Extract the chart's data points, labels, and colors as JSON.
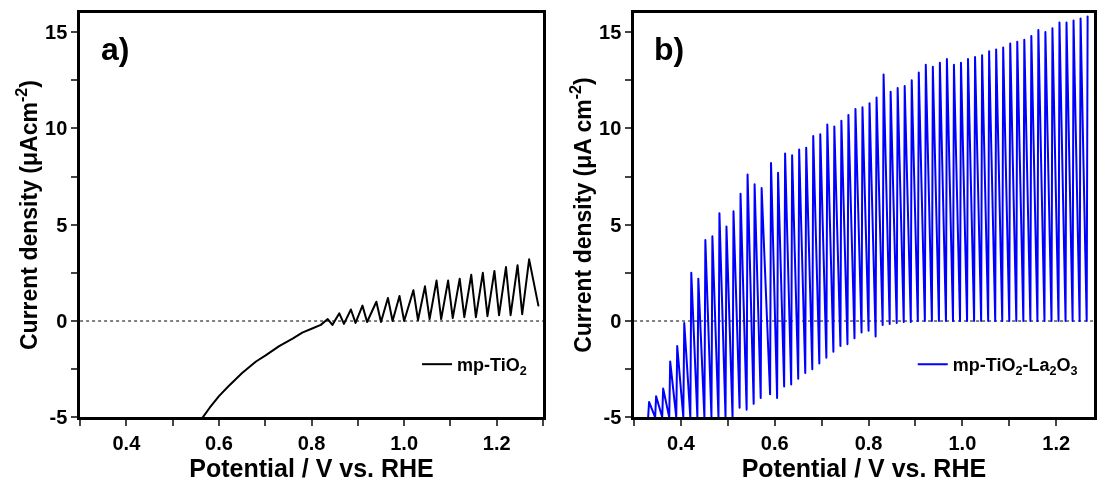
{
  "chart_data": [
    {
      "type": "line",
      "xlabel": "Potential / V vs. RHE",
      "ylabel": "Current density (μAcm$^{-2}$)",
      "xlim": [
        0.3,
        1.3
      ],
      "ylim": [
        -5,
        16
      ],
      "xticks": [
        {
          "value": 0.3,
          "label": null
        },
        0.4,
        {
          "value": 0.5,
          "label": null
        },
        0.6,
        {
          "value": 0.7,
          "label": null
        },
        0.8,
        {
          "value": 0.9,
          "label": null
        },
        "1.0",
        {
          "value": 1.1,
          "label": null
        },
        1.2,
        {
          "value": 1.3,
          "label": null
        }
      ],
      "yticks": [
        -5,
        {
          "value": -2.5,
          "label": null
        },
        0,
        {
          "value": 2.5,
          "label": null
        },
        5,
        {
          "value": 7.5,
          "label": null
        },
        10,
        {
          "value": 12.5,
          "label": null
        },
        15
      ],
      "legend": "bottom right",
      "grid": false,
      "annotations": [
        "a)"
      ],
      "ref_lines": [
        {
          "axis": "y",
          "value": 0,
          "label": null,
          "color": "#000000",
          "line_style": "dotted"
        }
      ],
      "x": [
        0.565,
        0.58,
        0.6,
        0.62,
        0.65,
        0.68,
        0.7,
        0.73,
        0.76,
        0.78,
        0.8,
        0.82,
        0.835,
        0.845,
        0.86,
        0.87,
        0.885,
        0.895,
        0.91,
        0.92,
        0.94,
        0.95,
        0.965,
        0.975,
        0.99,
        1.0,
        1.02,
        1.03,
        1.045,
        1.055,
        1.07,
        1.08,
        1.095,
        1.105,
        1.12,
        1.13,
        1.145,
        1.155,
        1.17,
        1.18,
        1.195,
        1.205,
        1.22,
        1.23,
        1.245,
        1.255,
        1.27,
        1.29
      ],
      "series": [
        {
          "name": "mp-TiO$_{2}$",
          "color": "#000000",
          "values": [
            -5,
            -4.5,
            -3.9,
            -3.4,
            -2.7,
            -2.1,
            -1.8,
            -1.3,
            -0.9,
            -0.6,
            -0.4,
            -0.2,
            0.1,
            -0.2,
            0.4,
            -0.15,
            0.6,
            -0.1,
            0.8,
            -0.05,
            1.0,
            -0.05,
            1.2,
            0.0,
            1.3,
            0.0,
            1.6,
            0.05,
            1.8,
            0.1,
            2.1,
            0.1,
            2.1,
            0.15,
            2.2,
            0.2,
            2.4,
            0.2,
            2.5,
            0.25,
            2.6,
            0.3,
            2.8,
            0.3,
            2.9,
            0.35,
            3.2,
            0.8
          ]
        }
      ]
    },
    {
      "type": "line",
      "xlabel": "Potential / V vs. RHE",
      "ylabel": "Current density (μA cm$^{-2}$)",
      "xlim": [
        0.3,
        1.28
      ],
      "ylim": [
        -5,
        16
      ],
      "xticks": [
        {
          "value": 0.3,
          "label": null
        },
        0.4,
        {
          "value": 0.5,
          "label": null
        },
        0.6,
        {
          "value": 0.7,
          "label": null
        },
        0.8,
        {
          "value": 0.9,
          "label": null
        },
        "1.0",
        {
          "value": 1.1,
          "label": null
        },
        1.2
      ],
      "yticks": [
        -5,
        {
          "value": -2.5,
          "label": null
        },
        0,
        {
          "value": 2.5,
          "label": null
        },
        5,
        {
          "value": 7.5,
          "label": null
        },
        10,
        {
          "value": 12.5,
          "label": null
        },
        15
      ],
      "legend": "bottom right",
      "grid": false,
      "annotations": [
        "b)"
      ],
      "ref_lines": [
        {
          "axis": "y",
          "value": 0,
          "label": null,
          "color": "#000000",
          "line_style": "dotted"
        }
      ],
      "x": [
        0.33,
        0.332,
        0.345,
        0.347,
        0.36,
        0.362,
        0.375,
        0.377,
        0.39,
        0.392,
        0.405,
        0.407,
        0.42,
        0.422,
        0.435,
        0.437,
        0.45,
        0.452,
        0.465,
        0.467,
        0.48,
        0.482,
        0.495,
        0.497,
        0.51,
        0.512,
        0.525,
        0.527,
        0.54,
        0.542,
        0.555,
        0.557,
        0.57,
        0.572,
        0.59,
        0.592,
        0.605,
        0.607,
        0.62,
        0.622,
        0.635,
        0.637,
        0.65,
        0.652,
        0.665,
        0.667,
        0.68,
        0.682,
        0.695,
        0.697,
        0.71,
        0.712,
        0.725,
        0.727,
        0.74,
        0.742,
        0.755,
        0.757,
        0.77,
        0.772,
        0.785,
        0.787,
        0.8,
        0.802,
        0.815,
        0.817,
        0.83,
        0.832,
        0.845,
        0.847,
        0.86,
        0.862,
        0.875,
        0.877,
        0.89,
        0.892,
        0.905,
        0.907,
        0.92,
        0.922,
        0.935,
        0.937,
        0.95,
        0.952,
        0.965,
        0.967,
        0.98,
        0.982,
        0.995,
        0.997,
        1.01,
        1.012,
        1.025,
        1.027,
        1.04,
        1.042,
        1.055,
        1.057,
        1.07,
        1.072,
        1.085,
        1.087,
        1.1,
        1.102,
        1.115,
        1.117,
        1.13,
        1.132,
        1.145,
        1.147,
        1.16,
        1.162,
        1.175,
        1.177,
        1.19,
        1.192,
        1.205,
        1.207,
        1.22,
        1.222,
        1.235,
        1.237,
        1.25,
        1.252,
        1.265,
        1.267
      ],
      "series": [
        {
          "name": "mp-TiO$_{2}$-La$_{2}$O$_{3}$",
          "color": "#0000ff",
          "values": [
            -5,
            -4.2,
            -5,
            -3.9,
            -5,
            -3.5,
            -5,
            -2.1,
            -5,
            -1.3,
            -5,
            -0.1,
            -5,
            2.5,
            -5,
            2.2,
            -5,
            4.2,
            -5,
            4.4,
            -5,
            5.6,
            -5,
            4.9,
            -5,
            5.7,
            -4.5,
            6.6,
            -4.6,
            7.6,
            -4.3,
            7.1,
            -4.0,
            6.9,
            -3.8,
            8.2,
            -4.0,
            7.7,
            -3.4,
            8.7,
            -3.3,
            8.6,
            -3.0,
            8.9,
            -2.7,
            9.0,
            -2.5,
            9.6,
            -2.2,
            9.7,
            -1.9,
            10.2,
            -1.6,
            10.1,
            -1.3,
            10.4,
            -1.2,
            10.7,
            -0.9,
            11.0,
            -0.6,
            11.1,
            -0.5,
            11.3,
            -0.8,
            11.6,
            -0.2,
            12.8,
            -0.15,
            11.9,
            -0.1,
            12.1,
            -0.05,
            12.2,
            -0.05,
            12.5,
            0,
            12.9,
            0,
            13.3,
            0,
            13.2,
            0,
            13.4,
            0,
            13.6,
            0,
            13.3,
            0,
            13.4,
            0,
            13.6,
            0,
            13.7,
            0,
            13.8,
            0,
            14.0,
            0,
            14.1,
            0,
            14.2,
            0,
            14.4,
            0,
            14.5,
            0,
            14.6,
            0,
            14.8,
            0,
            15.1,
            0,
            15.0,
            0,
            15.2,
            0,
            15.5,
            0,
            15.5,
            0,
            15.6,
            0,
            15.7,
            0,
            15.8
          ]
        }
      ]
    }
  ]
}
